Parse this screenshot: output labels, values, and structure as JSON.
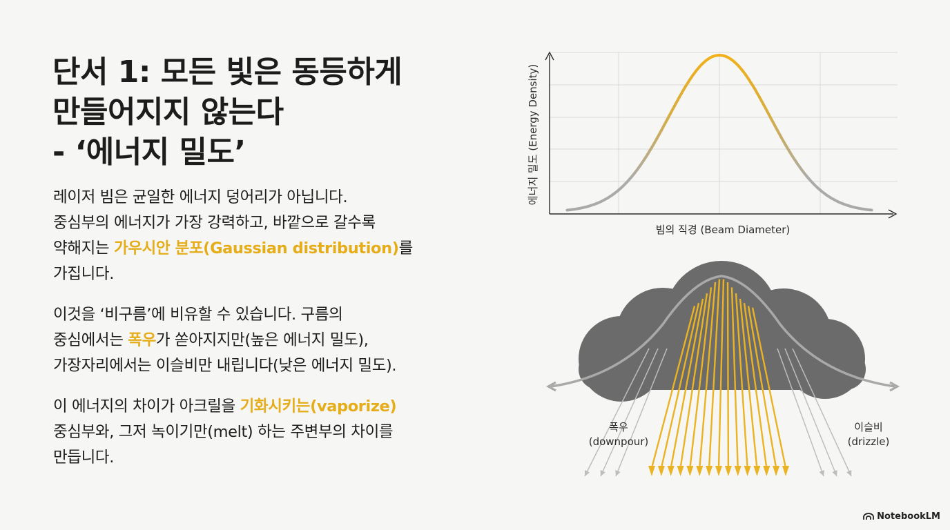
{
  "title": {
    "line1": "단서 1: 모든 빛은 동등하게",
    "line2": "만들어지지 않는다",
    "line3": "- ‘에너지 밀도’"
  },
  "body": {
    "p1": {
      "l1": "레이저 빔은 균일한 에너지 덩어리가 아닙니다.",
      "l2": "중심부의 에너지가 가장 강력하고, 바깥으로 갈수록",
      "l3a": "약해지는 ",
      "l3hl": "가우시안 분포(Gaussian distribution)",
      "l3b": "를",
      "l4": "가집니다."
    },
    "p2": {
      "l1": "이것을 ‘비구름’에 비유할 수 있습니다. 구름의",
      "l2a": "중심에서는 ",
      "l2hl": "폭우",
      "l2b": "가 쏟아지지만(높은 에너지 밀도),",
      "l3": "가장자리에서는 이슬비만 내립니다(낮은 에너지 밀도)."
    },
    "p3": {
      "l1a": "이 에너지의 차이가 아크릴을 ",
      "l1hl": "기화시키는(vaporize)",
      "l2": "중심부와, 그저 녹이기만(melt) 하는 주변부의 차이를",
      "l3": "만듭니다."
    }
  },
  "chart": {
    "ylabel": "에너지 밀도 (Energy Density)",
    "xlabel": "빔의 직경 (Beam Diameter)"
  },
  "cloud": {
    "downpour_ko": "폭우",
    "downpour_en": "(downpour)",
    "drizzle_ko": "이슬비",
    "drizzle_en": "(drizzle)"
  },
  "brand": "NotebookLM",
  "colors": {
    "accent": "#e5ad1a",
    "gray": "#a8a8a8",
    "cloud": "#6b6b6b",
    "text": "#1c1c1c"
  },
  "chart_data": {
    "type": "line",
    "ylabel": "에너지 밀도 (Energy Density)",
    "xlabel": "빔의 직경 (Beam Diameter)",
    "x": [
      -3,
      -2.5,
      -2,
      -1.5,
      -1,
      -0.5,
      0,
      0.5,
      1,
      1.5,
      2,
      2.5,
      3
    ],
    "values": [
      0.011,
      0.044,
      0.135,
      0.325,
      0.607,
      0.882,
      1.0,
      0.882,
      0.607,
      0.325,
      0.135,
      0.044,
      0.011
    ],
    "grid": true,
    "legend": "none"
  }
}
